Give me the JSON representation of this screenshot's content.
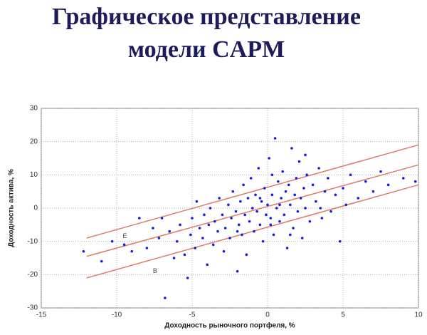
{
  "chart_data": {
    "type": "scatter",
    "title": [
      "Графическое представление",
      "модели CAPM"
    ],
    "x_label": "Доходность рыночного портфеля, %",
    "y_label": "Доходность актива, %",
    "xlim": [
      -15,
      10
    ],
    "xticks": [
      -15,
      -10,
      -5,
      0,
      5,
      10
    ],
    "ylim": [
      -30,
      30
    ],
    "yticks": [
      -30,
      -20,
      -10,
      0,
      10,
      20,
      30
    ],
    "grid": true,
    "series": [
      {
        "color": "#1a1ae6",
        "x": [
          -12.2,
          -11,
          -10.3,
          -9.5,
          -9,
          -8.5,
          -8,
          -7.6,
          -7.2,
          -7,
          -6.8,
          -6.5,
          -6.2,
          -6,
          -5.8,
          -5.5,
          -5.3,
          -5.1,
          -5,
          -4.8,
          -4.7,
          -4.5,
          -4.3,
          -4.2,
          -4,
          -3.9,
          -3.8,
          -3.6,
          -3.5,
          -3.3,
          -3.2,
          -3,
          -2.9,
          -2.8,
          -2.6,
          -2.5,
          -2.4,
          -2.3,
          -2.1,
          -2,
          -1.9,
          -1.8,
          -1.7,
          -1.6,
          -1.5,
          -1.4,
          -1.3,
          -1.2,
          -1.1,
          -1,
          -0.9,
          -0.8,
          -0.7,
          -0.6,
          -0.5,
          -0.4,
          -0.3,
          -0.2,
          -0.1,
          0,
          0.1,
          0.2,
          0.3,
          0.4,
          0.5,
          0.6,
          0.7,
          0.8,
          0.9,
          1,
          1.1,
          1.2,
          1.3,
          1.4,
          1.5,
          1.6,
          1.7,
          1.8,
          1.9,
          2,
          2.1,
          2.2,
          2.3,
          2.4,
          2.5,
          2.6,
          2.8,
          3,
          3.2,
          3.4,
          3.6,
          3.8,
          4,
          4.2,
          4.5,
          4.8,
          5,
          5.2,
          5.5,
          6,
          6.5,
          7,
          7.5,
          8,
          9,
          9.8,
          0.2,
          0.3,
          -0.5,
          1.5,
          2.5,
          -2,
          0.8,
          3.5
        ],
        "values": [
          -13,
          -16,
          -10,
          -11,
          -13,
          -3,
          -12,
          -6,
          -9,
          -3,
          -27,
          -7,
          -15,
          -10,
          -5,
          -14,
          -21,
          -8,
          -3,
          -12,
          2,
          -6,
          -9,
          -2,
          -17,
          -5,
          0,
          -11,
          -4,
          -7,
          3,
          -2,
          -13,
          -6,
          1,
          -9,
          -3,
          5,
          -1,
          -19,
          -5,
          2,
          -8,
          7,
          -2,
          -14,
          3,
          -4,
          9,
          0,
          -7,
          4,
          -1,
          12,
          -5,
          2,
          -10,
          6,
          -2,
          1,
          15,
          -3,
          4,
          -8,
          21,
          0,
          8,
          -4,
          3,
          11,
          -2,
          5,
          -12,
          7,
          1,
          18,
          -6,
          4,
          9,
          -1,
          14,
          3,
          -9,
          6,
          0,
          10,
          -4,
          7,
          2,
          12,
          -3,
          5,
          9,
          -1,
          4,
          -10,
          6,
          1,
          10,
          3,
          8,
          5,
          11,
          7,
          9,
          8,
          -5,
          10,
          3,
          -8,
          16,
          -7,
          1,
          0
        ]
      }
    ],
    "lines": [
      {
        "color": "#e07a68",
        "x": [
          -12,
          10
        ],
        "values": [
          -9,
          19
        ]
      },
      {
        "color": "#e07a68",
        "x": [
          -12,
          10
        ],
        "values": [
          -14.5,
          13
        ]
      },
      {
        "color": "#e07a68",
        "x": [
          -12,
          10
        ],
        "values": [
          -21,
          7
        ]
      }
    ],
    "annotations": [
      {
        "text": "E",
        "x": -9.6,
        "y": -8.5
      },
      {
        "text": "B",
        "x": -7.6,
        "y": -19
      }
    ]
  }
}
